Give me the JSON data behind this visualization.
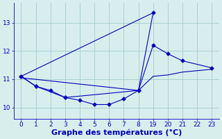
{
  "bg_color": "#d8eeed",
  "grid_color": "#aacfcf",
  "line_color": "#0000bb",
  "xlabel": "Graphe des températures (°C)",
  "xlabel_fontsize": 8,
  "tick_fontsize": 6.5,
  "marker": "D",
  "markersize": 2.5,
  "yticks": [
    10,
    11,
    12,
    13
  ],
  "ylim": [
    9.6,
    13.7
  ],
  "xtick_labels": [
    "0",
    "1",
    "2",
    "3",
    "4",
    "5",
    "6",
    "7",
    "8",
    "19",
    "20",
    "21",
    "22",
    "23"
  ],
  "line1_xi": [
    0,
    1,
    2,
    3,
    4,
    5,
    6,
    7,
    8,
    9
  ],
  "line1_y": [
    11.1,
    10.75,
    10.6,
    10.35,
    10.25,
    10.1,
    10.1,
    10.3,
    10.6,
    13.35
  ],
  "line2_xi": [
    0,
    9
  ],
  "line2_y": [
    11.1,
    13.35
  ],
  "line3_xi": [
    0,
    1,
    3,
    8,
    9,
    10,
    11,
    13
  ],
  "line3_y": [
    11.1,
    10.75,
    10.35,
    10.6,
    12.2,
    11.9,
    11.65,
    11.4
  ],
  "line4_xi": [
    0,
    8,
    9,
    10,
    11,
    13
  ],
  "line4_y": [
    11.05,
    10.6,
    11.1,
    11.15,
    11.25,
    11.35
  ]
}
